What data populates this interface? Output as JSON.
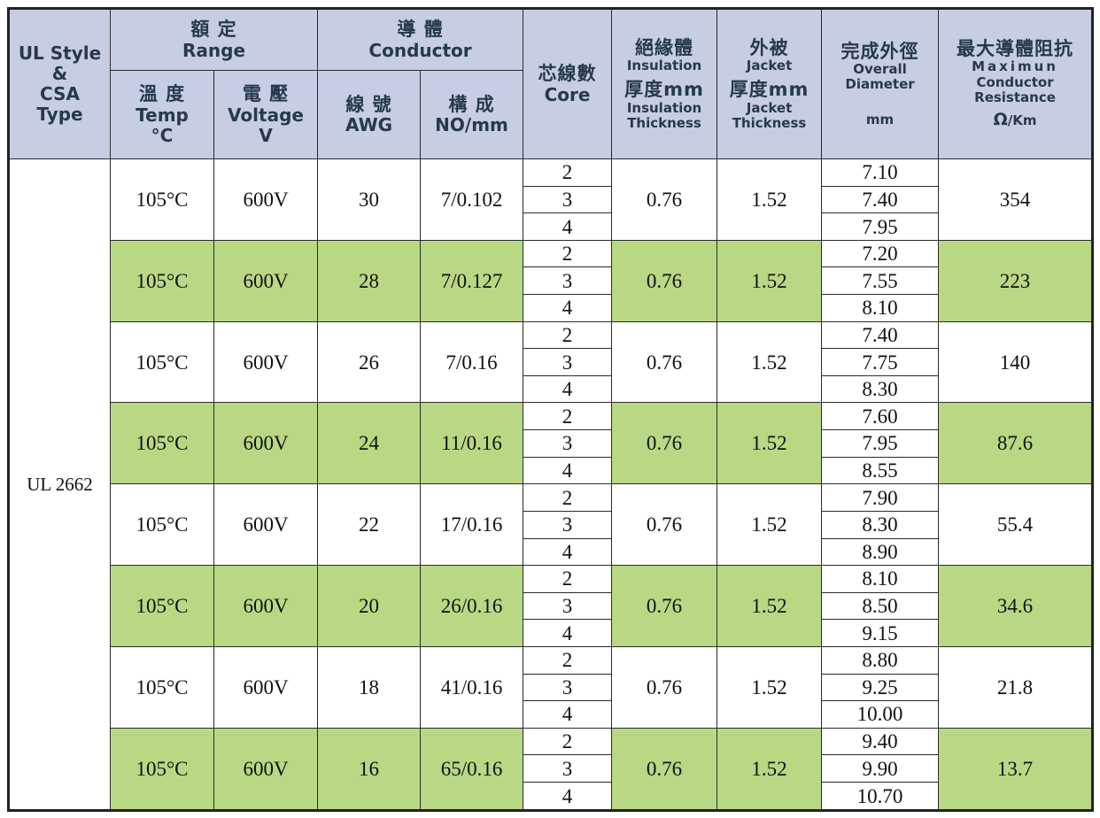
{
  "header": {
    "style": [
      "UL Style",
      "&",
      "CSA",
      "Type"
    ],
    "range_cn": "額 定",
    "range_en": "Range",
    "conductor_cn": "導 體",
    "conductor_en": "Conductor",
    "temp_cn": "溫 度",
    "temp_en": "Temp",
    "temp_unit": "°C",
    "voltage_cn": "電 壓",
    "voltage_en": "Voltage",
    "voltage_unit": "V",
    "awg_cn": "線 號",
    "awg_en": "AWG",
    "nomm_cn": "構 成",
    "nomm_en": "NO/mm",
    "core_cn": "芯線數",
    "core_en": "Core",
    "ins_cn": "絕緣體",
    "ins_en": "Insulation",
    "ins_cn2": "厚度mm",
    "ins_en2": "Insulation",
    "ins_en3": "Thickness",
    "jacket_cn": "外被",
    "jacket_en": "Jacket",
    "jacket_cn2": "厚度mm",
    "jacket_en2": "Jacket",
    "jacket_en3": "Thickness",
    "od_cn": "完成外徑",
    "od_en": "Overall",
    "od_en2": "Diameter",
    "od_unit": "mm",
    "res_cn": "最大導體阻抗",
    "res_en": "Maximun",
    "res_en2": "Conductor",
    "res_en3": "Resistance",
    "res_unit_sym": "Ω",
    "res_unit": "/Km"
  },
  "ul_style": "UL 2662",
  "row_fill_color": "#b8d884",
  "header_fill_color": "#c7cde3",
  "rows": [
    {
      "temp": "105°C",
      "voltage": "600V",
      "awg": "30",
      "nomm": "7/0.102",
      "cores": [
        "2",
        "3",
        "4"
      ],
      "insulation": "0.76",
      "jacket": "1.52",
      "od": [
        "7.10",
        "7.40",
        "7.95"
      ],
      "resistance": "354",
      "green": false
    },
    {
      "temp": "105°C",
      "voltage": "600V",
      "awg": "28",
      "nomm": "7/0.127",
      "cores": [
        "2",
        "3",
        "4"
      ],
      "insulation": "0.76",
      "jacket": "1.52",
      "od": [
        "7.20",
        "7.55",
        "8.10"
      ],
      "resistance": "223",
      "green": true
    },
    {
      "temp": "105°C",
      "voltage": "600V",
      "awg": "26",
      "nomm": "7/0.16",
      "cores": [
        "2",
        "3",
        "4"
      ],
      "insulation": "0.76",
      "jacket": "1.52",
      "od": [
        "7.40",
        "7.75",
        "8.30"
      ],
      "resistance": "140",
      "green": false
    },
    {
      "temp": "105°C",
      "voltage": "600V",
      "awg": "24",
      "nomm": "11/0.16",
      "cores": [
        "2",
        "3",
        "4"
      ],
      "insulation": "0.76",
      "jacket": "1.52",
      "od": [
        "7.60",
        "7.95",
        "8.55"
      ],
      "resistance": "87.6",
      "green": true
    },
    {
      "temp": "105°C",
      "voltage": "600V",
      "awg": "22",
      "nomm": "17/0.16",
      "cores": [
        "2",
        "3",
        "4"
      ],
      "insulation": "0.76",
      "jacket": "1.52",
      "od": [
        "7.90",
        "8.30",
        "8.90"
      ],
      "resistance": "55.4",
      "green": false
    },
    {
      "temp": "105°C",
      "voltage": "600V",
      "awg": "20",
      "nomm": "26/0.16",
      "cores": [
        "2",
        "3",
        "4"
      ],
      "insulation": "0.76",
      "jacket": "1.52",
      "od": [
        "8.10",
        "8.50",
        "9.15"
      ],
      "resistance": "34.6",
      "green": true
    },
    {
      "temp": "105°C",
      "voltage": "600V",
      "awg": "18",
      "nomm": "41/0.16",
      "cores": [
        "2",
        "3",
        "4"
      ],
      "insulation": "0.76",
      "jacket": "1.52",
      "od": [
        "8.80",
        "9.25",
        "10.00"
      ],
      "resistance": "21.8",
      "green": false
    },
    {
      "temp": "105°C",
      "voltage": "600V",
      "awg": "16",
      "nomm": "65/0.16",
      "cores": [
        "2",
        "3",
        "4"
      ],
      "insulation": "0.76",
      "jacket": "1.52",
      "od": [
        "9.40",
        "9.90",
        "10.70"
      ],
      "resistance": "13.7",
      "green": true
    }
  ]
}
